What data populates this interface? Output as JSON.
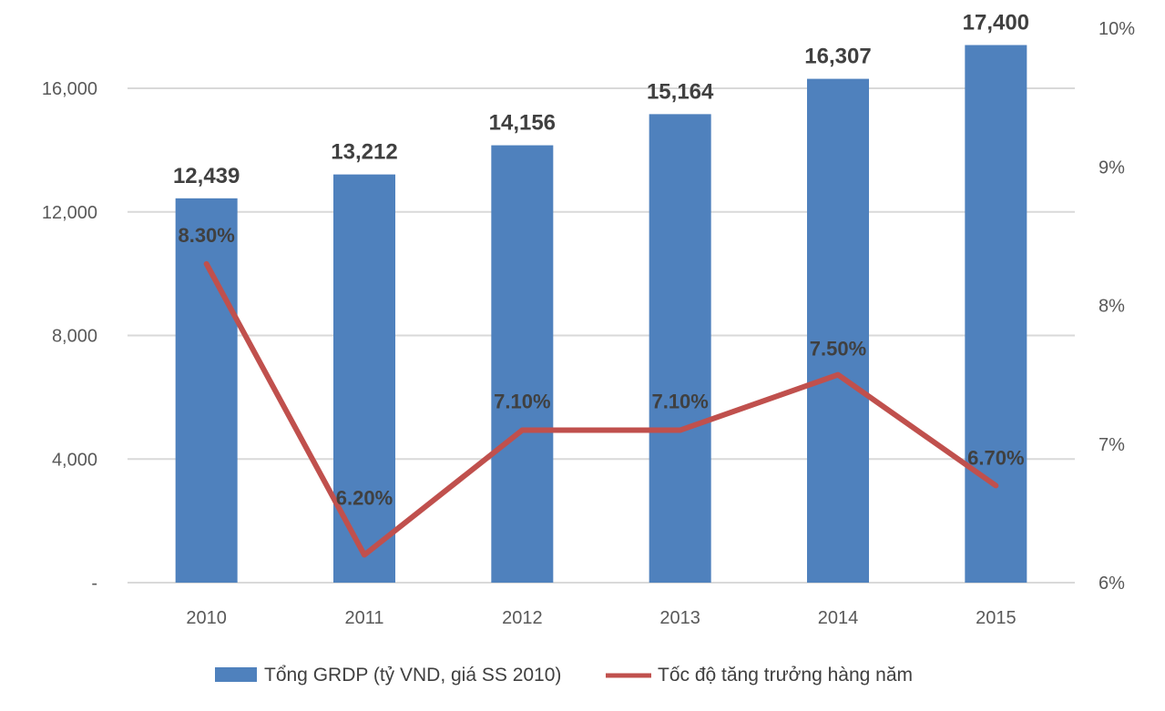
{
  "chart_data": {
    "type": "bar",
    "categories": [
      "2010",
      "2011",
      "2012",
      "2013",
      "2014",
      "2015"
    ],
    "series": [
      {
        "name": "Tổng GRDP (tỷ VND, giá SS 2010)",
        "type": "bar",
        "axis": "left",
        "values": [
          12439,
          13212,
          14156,
          15164,
          16307,
          17400
        ],
        "labels": [
          "12,439",
          "13,212",
          "14,156",
          "15,164",
          "16,307",
          "17,400"
        ],
        "color": "#4F81BD"
      },
      {
        "name": "Tốc độ tăng trưởng hàng năm",
        "type": "line",
        "axis": "right",
        "values": [
          8.3,
          6.2,
          7.1,
          7.1,
          7.5,
          6.7
        ],
        "labels": [
          "8.30%",
          "6.20%",
          "7.10%",
          "7.10%",
          "7.50%",
          "6.70%"
        ],
        "color": "#C0504D"
      }
    ],
    "y_left": {
      "ylim": [
        0,
        16000
      ],
      "ticks": [
        0,
        4000,
        8000,
        12000,
        16000
      ],
      "tick_labels": [
        "-",
        "4,000",
        "8,000",
        "12,000",
        "16,000"
      ]
    },
    "y_right": {
      "ylim": [
        6,
        10
      ],
      "ticks": [
        6,
        7,
        8,
        9,
        10
      ],
      "tick_labels": [
        "6%",
        "7%",
        "8%",
        "9%",
        "10%"
      ]
    },
    "grid": true,
    "legend": "bottom-center"
  }
}
